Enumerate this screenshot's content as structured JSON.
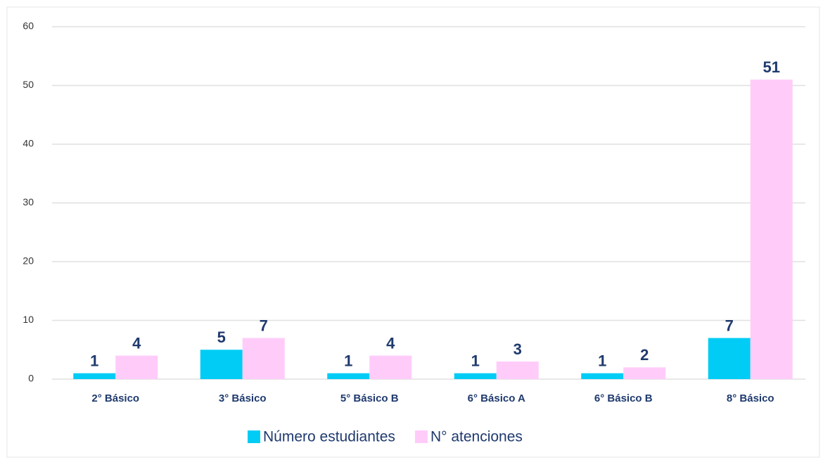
{
  "chart_data": {
    "type": "bar",
    "categories": [
      "2° Básico",
      "3° Básico",
      "5° Básico B",
      "6° Básico A",
      "6° Básico B",
      "8° Básico"
    ],
    "series": [
      {
        "name": "Número estudiantes",
        "color": "#00ccf5",
        "values": [
          1,
          5,
          1,
          1,
          1,
          7
        ]
      },
      {
        "name": "N° atenciones",
        "color": "#ffccfa",
        "values": [
          4,
          7,
          4,
          3,
          2,
          51
        ]
      }
    ],
    "ylim": [
      0,
      60
    ],
    "yticks": [
      0,
      10,
      20,
      30,
      40,
      50,
      60
    ],
    "grid": true,
    "legend": "bottom"
  }
}
